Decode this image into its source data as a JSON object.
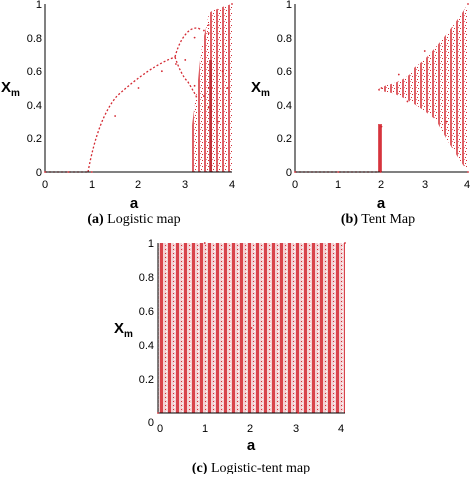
{
  "accent_color": "#d42a33",
  "chart_data": [
    {
      "type": "scatter",
      "caption_label": "(a)",
      "caption_text": "Logistic map",
      "xlabel": "a",
      "ylabel": "X",
      "ylabel_sub": "m",
      "xlim": [
        0,
        4
      ],
      "ylim": [
        0,
        1
      ],
      "x_ticks": [
        "0",
        "1",
        "2",
        "3",
        "4"
      ],
      "y_ticks": [
        "0",
        "0.2",
        "0.4",
        "0.6",
        "0.8",
        "1"
      ],
      "grid": false,
      "series": [
        {
          "x": [
            0.0,
            0.5,
            1.0,
            1.5,
            2.0,
            2.5,
            2.8,
            3.0,
            3.2,
            3.2,
            3.4,
            3.4,
            3.5,
            3.5,
            3.5,
            3.5,
            3.57,
            3.7,
            3.8,
            3.9,
            4.0
          ],
          "y": [
            0.0,
            0.0,
            0.0,
            0.333,
            0.5,
            0.6,
            0.643,
            0.667,
            0.513,
            0.8,
            0.452,
            0.842,
            0.383,
            0.501,
            0.827,
            0.875,
            0.5,
            0.3,
            0.6,
            0.5,
            1.0
          ]
        }
      ]
    },
    {
      "type": "scatter",
      "caption_label": "(b)",
      "caption_text": "Tent Map",
      "xlabel": "a",
      "ylabel": "X",
      "ylabel_sub": "m",
      "xlim": [
        0,
        4
      ],
      "ylim": [
        0,
        1
      ],
      "x_ticks": [
        "0",
        "1",
        "2",
        "3",
        "4"
      ],
      "y_ticks": [
        "0",
        "0.2",
        "0.4",
        "0.6",
        "0.8",
        "1"
      ],
      "grid": false,
      "series": [
        {
          "x": [
            0.0,
            1.0,
            1.98,
            2.0,
            2.0,
            2.4,
            2.6,
            3.0,
            3.5,
            4.0,
            4.0
          ],
          "y": [
            0.0,
            0.0,
            0.0,
            0.27,
            0.5,
            0.58,
            0.42,
            0.72,
            0.3,
            1.0,
            0.0
          ]
        }
      ]
    },
    {
      "type": "scatter",
      "caption_label": "(c)",
      "caption_text": "Logistic-tent map",
      "xlabel": "a",
      "ylabel": "X",
      "ylabel_sub": "m",
      "xlim": [
        0,
        4
      ],
      "ylim": [
        0,
        1
      ],
      "x_ticks": [
        "0",
        "1",
        "2",
        "3",
        "4"
      ],
      "y_ticks": [
        "0",
        "0.2",
        "0.4",
        "0.6",
        "0.8",
        "1"
      ],
      "grid": false,
      "series": [
        {
          "x": [
            0.0,
            1.0,
            2.0,
            3.0,
            4.0
          ],
          "y": [
            0.0,
            1.0,
            0.5,
            0.0,
            1.0
          ]
        }
      ]
    }
  ]
}
